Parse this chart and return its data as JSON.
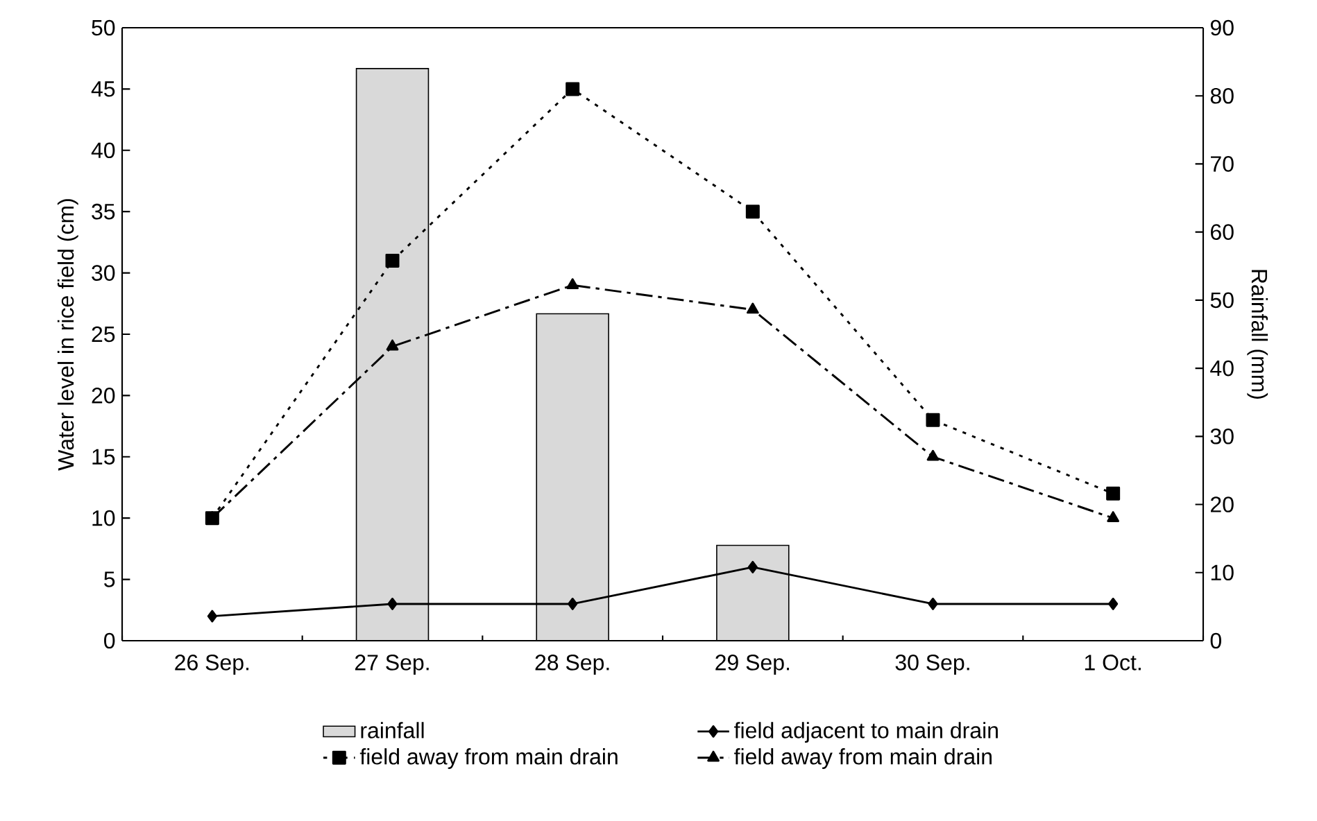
{
  "chart_data": {
    "type": "line",
    "categories": [
      "26 Sep.",
      "27 Sep.",
      "28 Sep.",
      "29 Sep.",
      "30 Sep.",
      "1 Oct."
    ],
    "ylabel": "Water level in rice field (cm)",
    "y2label": "Rainfall (mm)",
    "ylim": [
      0,
      50
    ],
    "yticks": [
      0,
      5,
      10,
      15,
      20,
      25,
      30,
      35,
      40,
      45,
      50
    ],
    "y2lim": [
      0,
      90
    ],
    "y2ticks": [
      0,
      10,
      20,
      30,
      40,
      50,
      60,
      70,
      80,
      90
    ],
    "legend": "bottom",
    "series": [
      {
        "name": "rainfall",
        "type": "bar",
        "axis": "y2",
        "color": "#d9d9d9",
        "values": [
          null,
          84,
          48,
          14,
          null,
          null
        ]
      },
      {
        "name": "field adjacent to main drain",
        "color": "#000000",
        "marker": "diamond",
        "line_style": "solid",
        "values": [
          2,
          3,
          3,
          6,
          3,
          3
        ]
      },
      {
        "name": "field away from main drain",
        "color": "#000000",
        "marker": "square",
        "line_style": "dotted",
        "values": [
          10,
          31,
          45,
          35,
          18,
          12
        ]
      },
      {
        "name": "field away from main drain",
        "color": "#000000",
        "marker": "triangle",
        "line_style": "dashed",
        "values": [
          10,
          24,
          29,
          27,
          15,
          10
        ]
      }
    ]
  }
}
